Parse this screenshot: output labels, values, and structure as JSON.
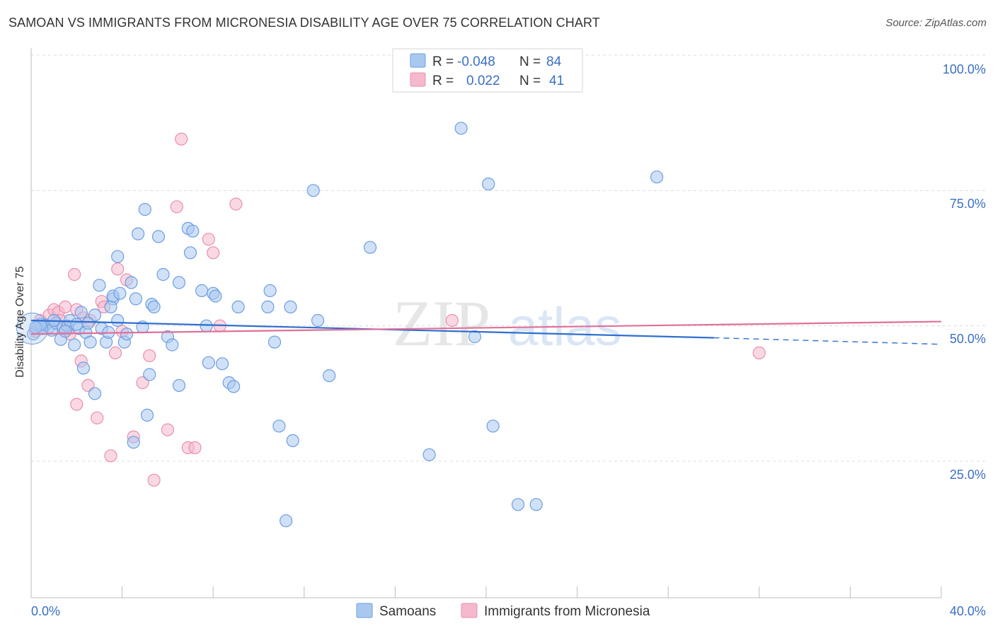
{
  "title": "SAMOAN VS IMMIGRANTS FROM MICRONESIA DISABILITY AGE OVER 75 CORRELATION CHART",
  "source": "Source: ZipAtlas.com",
  "watermark": {
    "zip": "ZIP",
    "atlas": "atlas"
  },
  "legend": {
    "rows": [
      {
        "r_label": "R =",
        "r_value": "-0.048",
        "n_label": "N =",
        "n_value": "84",
        "color": "#a9c8f0"
      },
      {
        "r_label": "R =",
        "r_value": "0.022",
        "n_label": "N =",
        "n_value": "41",
        "color": "#f5b8cc"
      }
    ]
  },
  "bottom_legend": [
    "Samoans",
    "Immigrants from Micronesia"
  ],
  "colors": {
    "samoans_fill": "#a9c8f0",
    "samoans_stroke": "#6d9ee0",
    "samoans_line": "#2f6fd0",
    "micronesia_fill": "#f5b8cc",
    "micronesia_stroke": "#e88fad",
    "micronesia_line": "#e0709a"
  },
  "chart_data": {
    "type": "scatter",
    "ylabel": "Disability Age Over 75",
    "x_ticks": [
      "0.0%",
      "40.0%"
    ],
    "y_ticks": [
      "100.0%",
      "75.0%",
      "50.0%",
      "25.0%"
    ],
    "xlim": [
      0,
      40
    ],
    "ylim": [
      0,
      105
    ],
    "grid": true,
    "series": [
      {
        "name": "Samoans",
        "points": [
          [
            0.1,
            48.5
          ],
          [
            0.3,
            50.0
          ],
          [
            0.5,
            49.5
          ],
          [
            0.6,
            50.2
          ],
          [
            0.8,
            49.8
          ],
          [
            0.9,
            49.2
          ],
          [
            1.1,
            50.5
          ],
          [
            1.3,
            47.5
          ],
          [
            1.4,
            49.8
          ],
          [
            1.6,
            50.0
          ],
          [
            1.7,
            51.0
          ],
          [
            1.9,
            46.5
          ],
          [
            2.1,
            49.5
          ],
          [
            2.2,
            52.5
          ],
          [
            2.4,
            48.8
          ],
          [
            2.6,
            47.0
          ],
          [
            2.8,
            52.0
          ],
          [
            3.0,
            57.5
          ],
          [
            3.1,
            49.5
          ],
          [
            3.3,
            47.0
          ],
          [
            2.3,
            42.2
          ],
          [
            2.8,
            37.5
          ],
          [
            3.4,
            48.8
          ],
          [
            3.6,
            55.0
          ],
          [
            3.8,
            51.0
          ],
          [
            3.5,
            53.5
          ],
          [
            3.6,
            55.5
          ],
          [
            3.8,
            62.8
          ],
          [
            3.9,
            56.0
          ],
          [
            4.1,
            47.0
          ],
          [
            4.2,
            48.5
          ],
          [
            4.4,
            58.0
          ],
          [
            4.6,
            55.0
          ],
          [
            4.7,
            67.0
          ],
          [
            4.9,
            49.8
          ],
          [
            5.0,
            71.5
          ],
          [
            5.1,
            33.5
          ],
          [
            5.2,
            41.0
          ],
          [
            5.3,
            54.0
          ],
          [
            5.4,
            53.5
          ],
          [
            5.6,
            66.5
          ],
          [
            5.8,
            59.5
          ],
          [
            6.0,
            48.0
          ],
          [
            6.2,
            46.5
          ],
          [
            6.5,
            58.0
          ],
          [
            6.5,
            39.0
          ],
          [
            6.9,
            68.0
          ],
          [
            7.0,
            63.5
          ],
          [
            7.1,
            67.5
          ],
          [
            7.5,
            56.5
          ],
          [
            7.7,
            50.0
          ],
          [
            7.8,
            43.2
          ],
          [
            8.0,
            56.0
          ],
          [
            8.1,
            55.5
          ],
          [
            8.4,
            43.0
          ],
          [
            8.7,
            39.5
          ],
          [
            8.9,
            38.8
          ],
          [
            9.1,
            53.5
          ],
          [
            10.4,
            53.5
          ],
          [
            10.5,
            56.5
          ],
          [
            10.7,
            47.0
          ],
          [
            10.9,
            31.5
          ],
          [
            11.2,
            14.0
          ],
          [
            11.4,
            53.5
          ],
          [
            11.5,
            28.8
          ],
          [
            12.4,
            75.0
          ],
          [
            12.6,
            51.0
          ],
          [
            13.1,
            40.8
          ],
          [
            14.9,
            64.5
          ],
          [
            17.5,
            26.2
          ],
          [
            18.9,
            86.5
          ],
          [
            19.5,
            48.0
          ],
          [
            20.1,
            76.2
          ],
          [
            20.3,
            31.5
          ],
          [
            21.4,
            17.0
          ],
          [
            22.2,
            17.0
          ],
          [
            27.5,
            77.5
          ],
          [
            4.5,
            28.5
          ],
          [
            1.0,
            51.0
          ],
          [
            0.4,
            50.3
          ],
          [
            0.2,
            49.7
          ],
          [
            1.5,
            49.0
          ],
          [
            2.0,
            50.3
          ],
          [
            2.5,
            50.5
          ]
        ]
      },
      {
        "name": "Immigrants from Micronesia",
        "points": [
          [
            0.2,
            49.0
          ],
          [
            0.4,
            51.0
          ],
          [
            0.6,
            50.0
          ],
          [
            0.8,
            52.0
          ],
          [
            1.0,
            53.0
          ],
          [
            1.2,
            52.5
          ],
          [
            1.3,
            51.0
          ],
          [
            1.4,
            49.5
          ],
          [
            1.5,
            53.5
          ],
          [
            1.6,
            49.5
          ],
          [
            1.7,
            48.5
          ],
          [
            2.0,
            53.0
          ],
          [
            1.9,
            59.5
          ],
          [
            2.2,
            43.5
          ],
          [
            2.3,
            51.5
          ],
          [
            2.5,
            39.0
          ],
          [
            2.6,
            51.0
          ],
          [
            2.0,
            35.5
          ],
          [
            2.9,
            33.0
          ],
          [
            3.1,
            54.5
          ],
          [
            3.2,
            53.5
          ],
          [
            3.5,
            26.0
          ],
          [
            3.7,
            45.0
          ],
          [
            3.8,
            60.5
          ],
          [
            4.0,
            49.0
          ],
          [
            4.2,
            58.5
          ],
          [
            4.5,
            29.5
          ],
          [
            4.9,
            39.5
          ],
          [
            5.2,
            44.5
          ],
          [
            5.4,
            21.5
          ],
          [
            6.0,
            30.8
          ],
          [
            6.4,
            72.0
          ],
          [
            6.6,
            84.5
          ],
          [
            6.9,
            27.5
          ],
          [
            7.2,
            27.5
          ],
          [
            7.8,
            66.0
          ],
          [
            8.0,
            63.5
          ],
          [
            8.3,
            50.0
          ],
          [
            9.0,
            72.5
          ],
          [
            18.5,
            51.0
          ],
          [
            32.0,
            45.0
          ]
        ]
      }
    ],
    "trend_lines": [
      {
        "series": "Samoans",
        "from": [
          0,
          51.0
        ],
        "to": [
          30,
          47.8
        ],
        "dashed_to": [
          40,
          46.6
        ]
      },
      {
        "series": "Immigrants from Micronesia",
        "from": [
          0,
          48.5
        ],
        "to": [
          40,
          50.8
        ]
      }
    ]
  }
}
